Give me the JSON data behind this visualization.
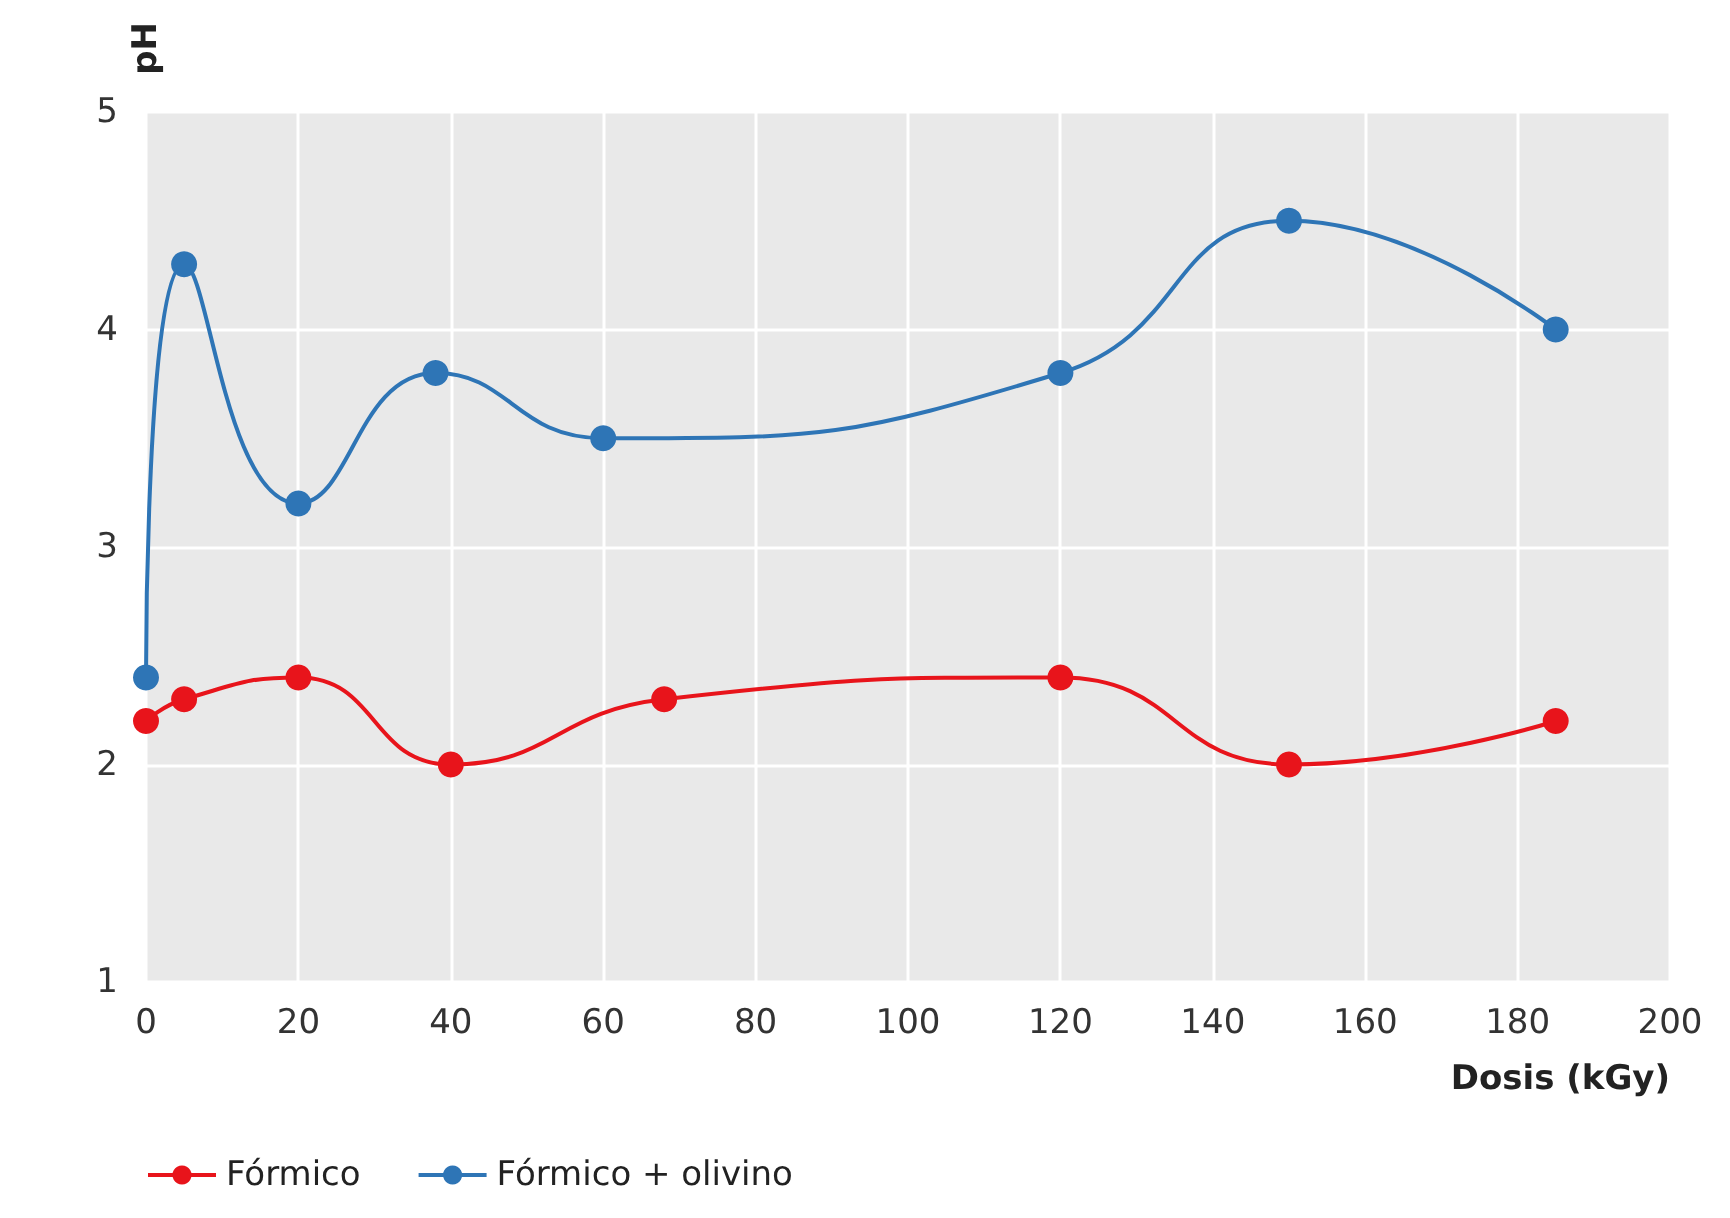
{
  "chart_data": {
    "type": "line",
    "xlabel": "Dosis (kGy)",
    "ylabel": "pH",
    "xlim": [
      0,
      200
    ],
    "xticks": [
      0,
      20,
      40,
      60,
      80,
      100,
      120,
      140,
      160,
      180,
      200
    ],
    "ylim": [
      1,
      5
    ],
    "yticks": [
      1,
      2,
      3,
      4,
      5
    ],
    "series": [
      {
        "name": "Fórmico",
        "color": "#e8141b",
        "x": [
          0,
          5,
          20,
          40,
          68,
          120,
          150,
          185
        ],
        "values": [
          2.2,
          2.3,
          2.4,
          2.0,
          2.3,
          2.4,
          2.0,
          2.2
        ]
      },
      {
        "name": "Fórmico + olivino",
        "color": "#2e75b6",
        "x": [
          0,
          5,
          20,
          38,
          60,
          120,
          150,
          185
        ],
        "values": [
          2.4,
          4.3,
          3.2,
          3.8,
          3.5,
          3.8,
          4.5,
          4.0
        ]
      }
    ],
    "grid": true,
    "legend": "bottom left",
    "marker": "circle",
    "line_style": "solid"
  }
}
